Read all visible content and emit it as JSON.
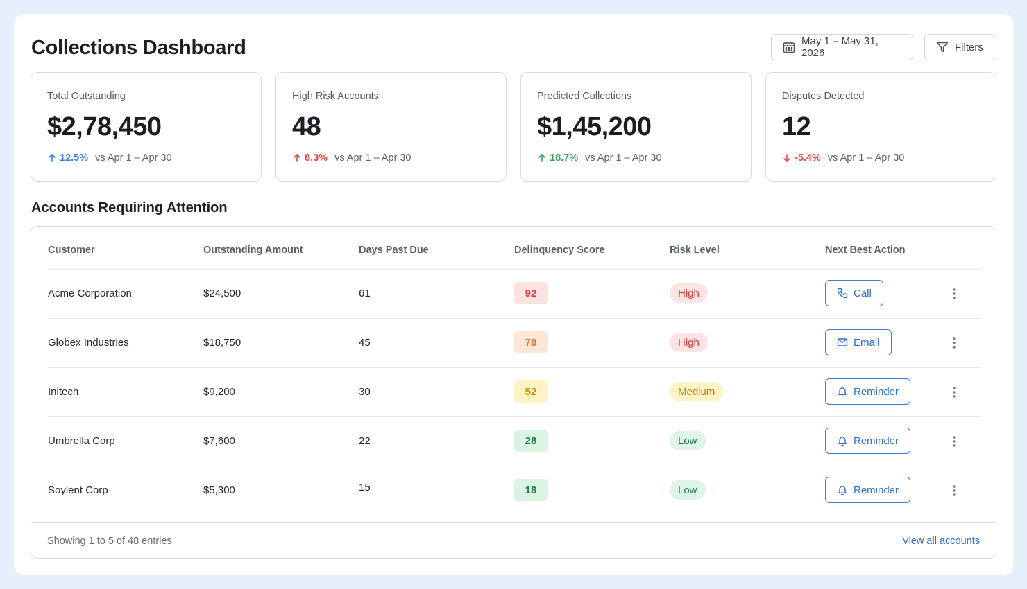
{
  "header": {
    "title": "Collections Dashboard",
    "date_range": "May 1 – May 31, 2026",
    "filters_label": "Filters"
  },
  "kpis": [
    {
      "label": "Total Outstanding",
      "value": "$2,78,450",
      "delta": "12.5%",
      "direction": "up",
      "color": "#3b7ddd",
      "comparison": "vs Apr 1 – Apr 30"
    },
    {
      "label": "High Risk Accounts",
      "value": "48",
      "delta": "8.3%",
      "direction": "up",
      "color": "#e04848",
      "comparison": "vs Apr 1 – Apr 30"
    },
    {
      "label": "Predicted Collections",
      "value": "$1,45,200",
      "delta": "18.7%",
      "direction": "up",
      "color": "#2ea85a",
      "comparison": "vs Apr 1 – Apr 30"
    },
    {
      "label": "Disputes Detected",
      "value": "12",
      "delta": "-5.4%",
      "direction": "down",
      "color": "#e04848",
      "comparison": "vs Apr 1 – Apr 30"
    }
  ],
  "table": {
    "title": "Accounts Requiring Attention",
    "columns": [
      "Customer",
      "Outstanding Amount",
      "Days Past Due",
      "Delinquency Score",
      "Risk Level",
      "Next Best Action"
    ],
    "rows": [
      {
        "customer": "Acme Corporation",
        "amount": "$24,500",
        "days": "61",
        "score": "92",
        "score_bg": "#fde2e2",
        "score_fg": "#d93636",
        "risk": "High",
        "risk_bg": "#fde4e4",
        "risk_fg": "#d93636",
        "action": "Call",
        "action_icon": "phone-icon"
      },
      {
        "customer": "Globex Industries",
        "amount": "$18,750",
        "days": "45",
        "score": "78",
        "score_bg": "#fee6d4",
        "score_fg": "#e0702a",
        "risk": "High",
        "risk_bg": "#fde4e4",
        "risk_fg": "#d93636",
        "action": "Email",
        "action_icon": "mail-icon"
      },
      {
        "customer": "Initech",
        "amount": "$9,200",
        "days": "30",
        "score": "52",
        "score_bg": "#fdf3c4",
        "score_fg": "#c48a06",
        "risk": "Medium",
        "risk_bg": "#fdf3c4",
        "risk_fg": "#b98204",
        "action": "Reminder",
        "action_icon": "bell-icon"
      },
      {
        "customer": "Umbrella Corp",
        "amount": "$7,600",
        "days": "22",
        "score": "28",
        "score_bg": "#daf3e2",
        "score_fg": "#1f7a43",
        "risk": "Low",
        "risk_bg": "#def4e6",
        "risk_fg": "#1f7a43",
        "action": "Reminder",
        "action_icon": "bell-icon"
      },
      {
        "customer": "Soylent Corp",
        "amount": "$5,300",
        "days": "15",
        "score": "18",
        "score_bg": "#daf3e2",
        "score_fg": "#1f7a43",
        "risk": "Low",
        "risk_bg": "#def4e6",
        "risk_fg": "#1f7a43",
        "action": "Reminder",
        "action_icon": "bell-icon"
      }
    ],
    "footer_text": "Showing 1 to 5 of 48 entries",
    "view_all": "View all accounts"
  }
}
